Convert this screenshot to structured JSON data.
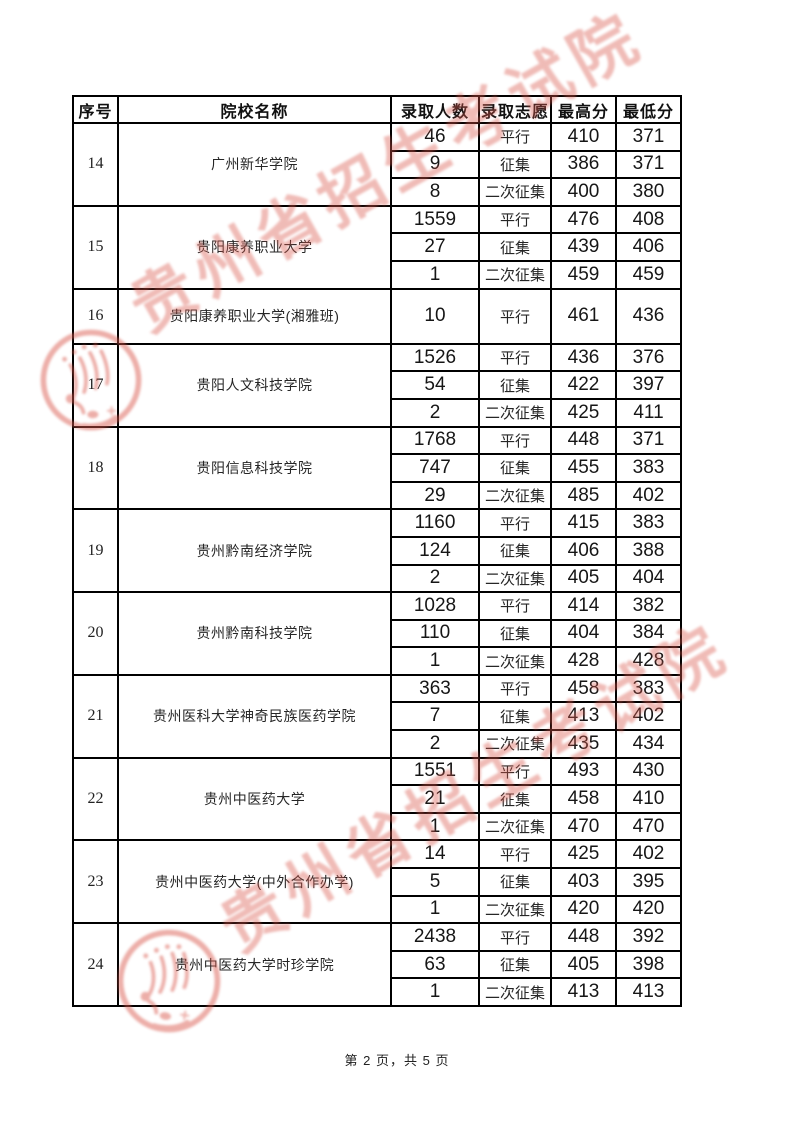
{
  "document": {
    "footer": "第 2 页，共 5 页",
    "watermark_text": "贵州省招生考试院",
    "watermark_color": "#d9574b"
  },
  "table": {
    "headers": [
      "序号",
      "院校名称",
      "录取人数",
      "录取志愿",
      "最高分",
      "最低分"
    ],
    "rows": [
      {
        "no": "14",
        "school": "广州新华学院",
        "entries": [
          {
            "count": "46",
            "wish": "平行",
            "max": "410",
            "min": "371"
          },
          {
            "count": "9",
            "wish": "征集",
            "max": "386",
            "min": "371"
          },
          {
            "count": "8",
            "wish": "二次征集",
            "max": "400",
            "min": "380"
          }
        ]
      },
      {
        "no": "15",
        "school": "贵阳康养职业大学",
        "entries": [
          {
            "count": "1559",
            "wish": "平行",
            "max": "476",
            "min": "408"
          },
          {
            "count": "27",
            "wish": "征集",
            "max": "439",
            "min": "406"
          },
          {
            "count": "1",
            "wish": "二次征集",
            "max": "459",
            "min": "459"
          }
        ]
      },
      {
        "no": "16",
        "school": "贵阳康养职业大学(湘雅班)",
        "entries": [
          {
            "count": "10",
            "wish": "平行",
            "max": "461",
            "min": "436"
          }
        ]
      },
      {
        "no": "17",
        "school": "贵阳人文科技学院",
        "entries": [
          {
            "count": "1526",
            "wish": "平行",
            "max": "436",
            "min": "376"
          },
          {
            "count": "54",
            "wish": "征集",
            "max": "422",
            "min": "397"
          },
          {
            "count": "2",
            "wish": "二次征集",
            "max": "425",
            "min": "411"
          }
        ]
      },
      {
        "no": "18",
        "school": "贵阳信息科技学院",
        "entries": [
          {
            "count": "1768",
            "wish": "平行",
            "max": "448",
            "min": "371"
          },
          {
            "count": "747",
            "wish": "征集",
            "max": "455",
            "min": "383"
          },
          {
            "count": "29",
            "wish": "二次征集",
            "max": "485",
            "min": "402"
          }
        ]
      },
      {
        "no": "19",
        "school": "贵州黔南经济学院",
        "entries": [
          {
            "count": "1160",
            "wish": "平行",
            "max": "415",
            "min": "383"
          },
          {
            "count": "124",
            "wish": "征集",
            "max": "406",
            "min": "388"
          },
          {
            "count": "2",
            "wish": "二次征集",
            "max": "405",
            "min": "404"
          }
        ]
      },
      {
        "no": "20",
        "school": "贵州黔南科技学院",
        "entries": [
          {
            "count": "1028",
            "wish": "平行",
            "max": "414",
            "min": "382"
          },
          {
            "count": "110",
            "wish": "征集",
            "max": "404",
            "min": "384"
          },
          {
            "count": "1",
            "wish": "二次征集",
            "max": "428",
            "min": "428"
          }
        ]
      },
      {
        "no": "21",
        "school": "贵州医科大学神奇民族医药学院",
        "entries": [
          {
            "count": "363",
            "wish": "平行",
            "max": "458",
            "min": "383"
          },
          {
            "count": "7",
            "wish": "征集",
            "max": "413",
            "min": "402"
          },
          {
            "count": "2",
            "wish": "二次征集",
            "max": "435",
            "min": "434"
          }
        ]
      },
      {
        "no": "22",
        "school": "贵州中医药大学",
        "entries": [
          {
            "count": "1551",
            "wish": "平行",
            "max": "493",
            "min": "430"
          },
          {
            "count": "21",
            "wish": "征集",
            "max": "458",
            "min": "410"
          },
          {
            "count": "1",
            "wish": "二次征集",
            "max": "470",
            "min": "470"
          }
        ]
      },
      {
        "no": "23",
        "school": "贵州中医药大学(中外合作办学)",
        "entries": [
          {
            "count": "14",
            "wish": "平行",
            "max": "425",
            "min": "402"
          },
          {
            "count": "5",
            "wish": "征集",
            "max": "403",
            "min": "395"
          },
          {
            "count": "1",
            "wish": "二次征集",
            "max": "420",
            "min": "420"
          }
        ]
      },
      {
        "no": "24",
        "school": "贵州中医药大学时珍学院",
        "entries": [
          {
            "count": "2438",
            "wish": "平行",
            "max": "448",
            "min": "392"
          },
          {
            "count": "63",
            "wish": "征集",
            "max": "405",
            "min": "398"
          },
          {
            "count": "1",
            "wish": "二次征集",
            "max": "413",
            "min": "413"
          }
        ]
      }
    ]
  }
}
